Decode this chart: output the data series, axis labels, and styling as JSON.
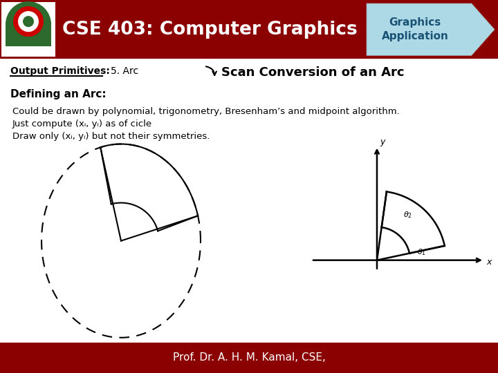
{
  "title": "CSE 403: Computer Graphics",
  "badge_text": "Graphics\nApplication",
  "header_bg": "#8B0000",
  "badge_bg": "#ADD8E6",
  "subtitle_label": "Output Primitives:",
  "subtitle_item": "5. Arc",
  "subtitle_section": "Scan Conversion of an Arc",
  "section_title": "Defining an Arc:",
  "body_lines": [
    "Could be drawn by polynomial, trigonometry, Bresenham’s and midpoint algorithm.",
    "Just compute (xᵢ, yᵢ) as of cicle",
    "Draw only (xᵢ, yᵢ) but not their symmetries."
  ],
  "footer_text": "Prof. Dr. A. H. M. Kamal, CSE,",
  "footer_bg": "#8B0000",
  "bg_color": "#FFFFFF"
}
